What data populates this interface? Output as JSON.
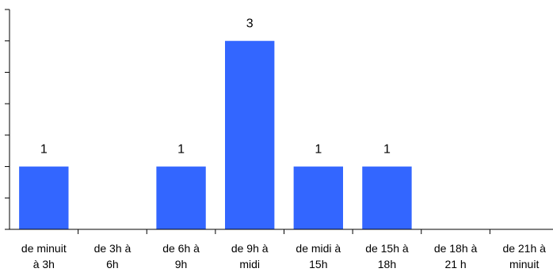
{
  "chart_data": {
    "type": "bar",
    "categories": [
      [
        "de minuit",
        "à 3h"
      ],
      [
        "de 3h à",
        "6h"
      ],
      [
        "de 6h à",
        "9h"
      ],
      [
        "de 9h à",
        "midi"
      ],
      [
        "de midi à",
        "15h"
      ],
      [
        "de 15h à",
        "18h"
      ],
      [
        "de 18h à",
        "21 h"
      ],
      [
        "de 21h à",
        "minuit"
      ]
    ],
    "values": [
      1,
      0,
      1,
      3,
      1,
      1,
      0,
      0
    ],
    "data_labels": [
      "1",
      "",
      "1",
      "3",
      "1",
      "1",
      "",
      ""
    ],
    "title": "",
    "xlabel": "",
    "ylabel": "",
    "ylim": [
      0,
      3.5
    ],
    "y_tick_step": 0.5,
    "y_tick_labels_shown": false,
    "grid": false,
    "legend": "none",
    "colors": {
      "bar": "#3366ff"
    }
  }
}
